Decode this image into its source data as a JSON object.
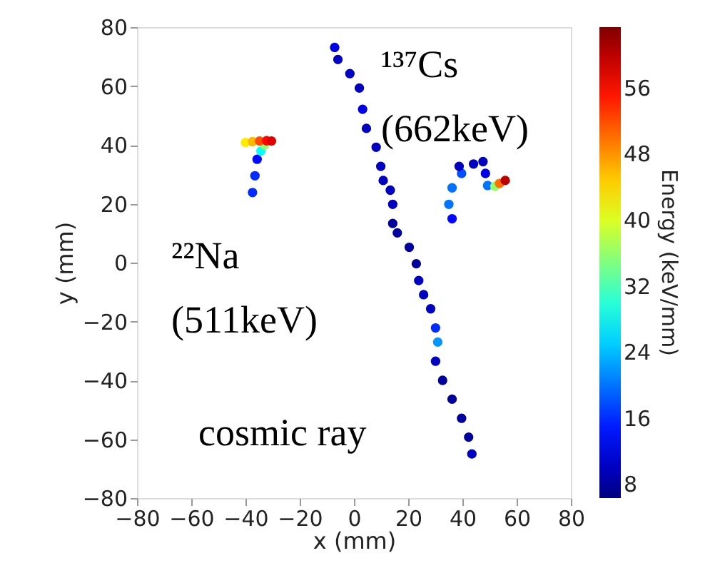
{
  "chart_data": {
    "type": "scatter",
    "xlabel": "x (mm)",
    "ylabel": "y (mm)",
    "clabel": "Energy (keV/mm)",
    "xlim": [
      -80,
      80
    ],
    "ylim": [
      -80,
      80
    ],
    "xticks": [
      -80,
      -60,
      -40,
      -20,
      0,
      20,
      40,
      60,
      80
    ],
    "yticks": [
      -80,
      -60,
      -40,
      -20,
      0,
      20,
      40,
      60,
      80
    ],
    "clim": [
      6.4,
      63.4
    ],
    "cticks": [
      8,
      16,
      24,
      32,
      40,
      48,
      56
    ],
    "grid": false,
    "marker": "circle",
    "series": [
      {
        "x": [
          -7.1,
          -5.9,
          -1.5,
          2.0,
          3.2,
          4.6,
          8.2,
          9.9,
          10.8,
          13.4,
          14.3,
          14.3,
          16.0,
          20.4,
          23.0,
          23.9,
          25.7,
          28.3,
          30.1,
          30.9,
          30.1,
          32.7,
          36.2,
          39.7,
          42.3,
          43.5
        ],
        "values": [
          73.1,
          69.0,
          64.2,
          59.3,
          52.1,
          45.6,
          39.2,
          32.7,
          27.9,
          24.6,
          19.8,
          13.3,
          10.1,
          5.2,
          -0.4,
          -6.1,
          -10.9,
          -15.7,
          -22.2,
          -27.0,
          -33.5,
          -40.0,
          -46.4,
          -52.9,
          -59.3,
          -65.0
        ],
        "cvalues": [
          12,
          10,
          10,
          10,
          12,
          10,
          10,
          10,
          10,
          10,
          10,
          8,
          8,
          8,
          8,
          10,
          10,
          10,
          16,
          22,
          10,
          8,
          8,
          8,
          8,
          10
        ],
        "colors": [
          "#0000e4",
          "#0000c0",
          "#0000c0",
          "#0000c0",
          "#0000e4",
          "#0000c0",
          "#0000c0",
          "#0000c0",
          "#0000c0",
          "#0000c0",
          "#0000c0",
          "#00009c",
          "#00009c",
          "#00009c",
          "#00009c",
          "#0000c0",
          "#0000c0",
          "#0000c0",
          "#002cff",
          "#0097ff",
          "#0000c0",
          "#00009c",
          "#00009c",
          "#00009c",
          "#00009c",
          "#0000c0"
        ]
      },
      {
        "x": [
          -37.4,
          -36.5,
          -35.7,
          -34.3,
          -33.0,
          -40.0,
          -37.4,
          -34.8,
          -32.2,
          -30.4
        ],
        "values": [
          23.8,
          29.5,
          35.1,
          37.9,
          40.0,
          40.8,
          41.1,
          41.3,
          41.4,
          41.3
        ],
        "cvalues": [
          16,
          16,
          14,
          28,
          36,
          43,
          46,
          52,
          56,
          58
        ],
        "colors": [
          "#002cff",
          "#002cff",
          "#0009ff",
          "#04fffb",
          "#93ff6b",
          "#ffed00",
          "#ffb800",
          "#ff4d00",
          "#ff0500",
          "#e00000"
        ]
      },
      {
        "x": [
          36.2,
          35.0,
          36.2,
          39.7,
          44.1,
          38.8,
          47.6,
          48.5,
          49.3,
          52.0,
          53.7,
          55.8
        ],
        "values": [
          14.9,
          19.8,
          25.4,
          30.3,
          33.5,
          32.7,
          34.3,
          30.3,
          26.2,
          25.9,
          26.9,
          27.9
        ],
        "cvalues": [
          14,
          20,
          20,
          18,
          10,
          10,
          10,
          12,
          20,
          36,
          50,
          60
        ],
        "colors": [
          "#0009ff",
          "#0074ff",
          "#0074ff",
          "#0050ff",
          "#0000c0",
          "#0000c0",
          "#0000c0",
          "#0000e4",
          "#0074ff",
          "#93ff6b",
          "#ff7100",
          "#bd0000"
        ]
      }
    ],
    "annotations": [
      "¹³⁷Cs\n(662keV)",
      "²²Na\n(511keV)",
      "cosmic ray"
    ]
  }
}
